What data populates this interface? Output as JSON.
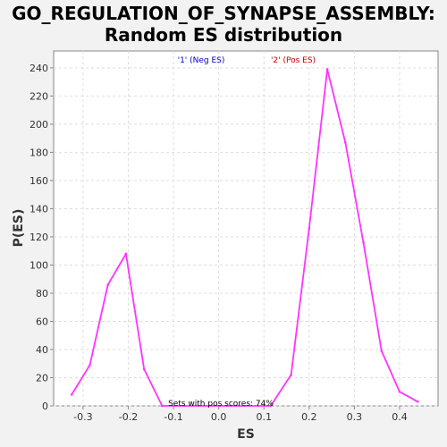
{
  "title": {
    "line1": "GO_REGULATION_OF_SYNAPSE_ASSEMBLY:",
    "line2": "Random ES distribution"
  },
  "colors": {
    "background": "#f2f2f2",
    "plot_bg": "#ffffff",
    "line": "#ff33ff",
    "legend_neg": "#0000cc",
    "legend_pos": "#cc0000",
    "grid": "#dddddd"
  },
  "chart_data": {
    "type": "line",
    "xlabel": "ES",
    "ylabel": "P(ES)",
    "xlim": [
      -0.365,
      0.485
    ],
    "ylim": [
      0,
      252
    ],
    "xticks": [
      -0.3,
      -0.2,
      -0.1,
      0.0,
      0.1,
      0.2,
      0.3,
      0.4
    ],
    "xtick_labels": [
      "-0.3",
      "-0.2",
      "-0.1",
      "0.0",
      "0.1",
      "0.2",
      "0.3",
      "0.4"
    ],
    "yticks": [
      0,
      20,
      40,
      60,
      80,
      100,
      120,
      140,
      160,
      180,
      200,
      220,
      240
    ],
    "ytick_labels": [
      "0",
      "20",
      "40",
      "60",
      "80",
      "100",
      "120",
      "140",
      "160",
      "180",
      "200",
      "220",
      "240"
    ],
    "grid": true,
    "series": [
      {
        "x": [
          -0.325,
          -0.285,
          -0.245,
          -0.205,
          -0.165,
          -0.125,
          0.115,
          0.16,
          0.2,
          0.24,
          0.28,
          0.32,
          0.36,
          0.4,
          0.44
        ],
        "y": [
          8,
          29,
          86,
          108,
          26,
          0,
          0,
          22,
          126,
          239,
          187,
          116,
          39,
          10,
          3
        ]
      }
    ],
    "legend": [
      {
        "label": "'1' (Neg ES)",
        "color": "#0000cc"
      },
      {
        "label": "'2' (Pos ES)",
        "color": "#cc0000"
      }
    ],
    "legend_placement": "top-center",
    "annotation": "Sets with pos scores: 74%"
  }
}
